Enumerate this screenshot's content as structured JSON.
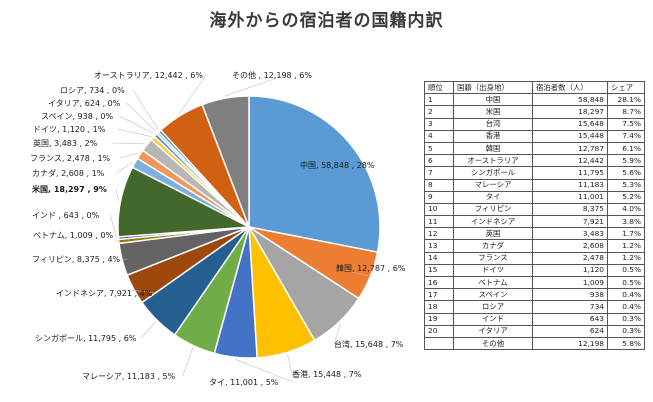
{
  "chart_data": {
    "type": "pie",
    "title": "海外からの宿泊者の国籍内訳",
    "slices": [
      {
        "name": "中国",
        "value": 58848,
        "label": "中国, 58,848 , 28%",
        "color": "#5b9bd5",
        "bold": false
      },
      {
        "name": "韓国",
        "value": 12787,
        "label": "韓国, 12,787 , 6%",
        "color": "#ed7d31",
        "bold": false
      },
      {
        "name": "台湾",
        "value": 15648,
        "label": "台湾, 15,648 , 7%",
        "color": "#a5a5a5",
        "bold": false
      },
      {
        "name": "香港",
        "value": 15448,
        "label": "香港, 15,448 , 7%",
        "color": "#ffc000",
        "bold": false
      },
      {
        "name": "タイ",
        "value": 11001,
        "label": "タイ, 11,001 , 5%",
        "color": "#4472c4",
        "bold": false
      },
      {
        "name": "マレーシア",
        "value": 11183,
        "label": "マレーシア, 11,183 , 5%",
        "color": "#70ad47",
        "bold": false
      },
      {
        "name": "シンガポール",
        "value": 11795,
        "label": "シンガポール, 11,795 , 6%",
        "color": "#255e91",
        "bold": false
      },
      {
        "name": "インドネシア",
        "value": 7921,
        "label": "インドネシア, 7,921 , 4%",
        "color": "#9e480e",
        "bold": false
      },
      {
        "name": "フィリピン",
        "value": 8375,
        "label": "フィリピン, 8,375 , 4%",
        "color": "#636363",
        "bold": false
      },
      {
        "name": "ベトナム",
        "value": 1009,
        "label": "ベトナム, 1,009 , 0%",
        "color": "#997300",
        "bold": false
      },
      {
        "name": "インド",
        "value": 643,
        "label": "インド , 643 , 0%",
        "color": "#264478",
        "bold": false
      },
      {
        "name": "米国",
        "value": 18297,
        "label": "米国, 18,297 , 9%",
        "color": "#43682b",
        "bold": true
      },
      {
        "name": "カナダ",
        "value": 2608,
        "label": "カナダ, 2,608 , 1%",
        "color": "#7cafdd",
        "bold": false
      },
      {
        "name": "フランス",
        "value": 2478,
        "label": "フランス, 2,478 , 1%",
        "color": "#f1975a",
        "bold": false
      },
      {
        "name": "英国",
        "value": 3483,
        "label": "英国, 3,483 , 2%",
        "color": "#b7b7b7",
        "bold": false
      },
      {
        "name": "ドイツ",
        "value": 1120,
        "label": "ドイツ, 1,120 , 1%",
        "color": "#ffcd33",
        "bold": false
      },
      {
        "name": "スペイン",
        "value": 938,
        "label": "スペイン, 938 , 0%",
        "color": "#698ed0",
        "bold": false
      },
      {
        "name": "イタリア",
        "value": 624,
        "label": "イタリア, 624 , 0%",
        "color": "#8cc168",
        "bold": false
      },
      {
        "name": "ロシア",
        "value": 734,
        "label": "ロシア, 734 , 0%",
        "color": "#327dc2",
        "bold": false
      },
      {
        "name": "オーストラリア",
        "value": 12442,
        "label": "オーストラリア, 12,442 , 6%",
        "color": "#d26012",
        "bold": false
      },
      {
        "name": "その他",
        "value": 12198,
        "label": "その他 , 12,198 , 6%",
        "color": "#7f7f7f",
        "bold": false
      }
    ]
  },
  "table": {
    "headers": [
      "順位",
      "国籍（出身地）",
      "宿泊者数（人）",
      "シェア"
    ],
    "rows": [
      [
        "1",
        "中国",
        "58,848",
        "28.1%"
      ],
      [
        "2",
        "米国",
        "18,297",
        "8.7%"
      ],
      [
        "3",
        "台湾",
        "15,648",
        "7.5%"
      ],
      [
        "4",
        "香港",
        "15,448",
        "7.4%"
      ],
      [
        "5",
        "韓国",
        "12,787",
        "6.1%"
      ],
      [
        "6",
        "オーストラリア",
        "12,442",
        "5.9%"
      ],
      [
        "7",
        "シンガポール",
        "11,795",
        "5.6%"
      ],
      [
        "8",
        "マレーシア",
        "11,183",
        "5.3%"
      ],
      [
        "9",
        "タイ",
        "11,001",
        "5.2%"
      ],
      [
        "10",
        "フィリピン",
        "8,375",
        "4.0%"
      ],
      [
        "11",
        "インドネシア",
        "7,921",
        "3.8%"
      ],
      [
        "12",
        "英国",
        "3,483",
        "1.7%"
      ],
      [
        "13",
        "カナダ",
        "2,608",
        "1.2%"
      ],
      [
        "14",
        "フランス",
        "2,478",
        "1.2%"
      ],
      [
        "15",
        "ドイツ",
        "1,120",
        "0.5%"
      ],
      [
        "16",
        "ベトナム",
        "1,009",
        "0.5%"
      ],
      [
        "17",
        "スペイン",
        "938",
        "0.4%"
      ],
      [
        "18",
        "ロシア",
        "734",
        "0.4%"
      ],
      [
        "19",
        "インド",
        "643",
        "0.3%"
      ],
      [
        "20",
        "イタリア",
        "624",
        "0.3%"
      ],
      [
        "",
        "その他",
        "12,198",
        "5.8%"
      ]
    ]
  }
}
